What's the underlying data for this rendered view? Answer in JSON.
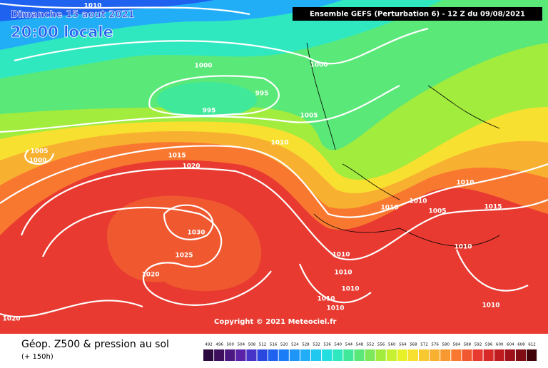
{
  "header": {
    "date": "Dimanche 15 aout 2021",
    "time": "20:00 locale",
    "run": "Ensemble GEFS  (Perturbation 6)  -  12 Z du 09/08/2021"
  },
  "copyright": "Copyright © 2021 Meteociel.fr",
  "footer": {
    "title": "Géop. Z500 & pression au sol",
    "lead": "(+ 150h)"
  },
  "isobar_labels": [
    1010,
    1000,
    1000,
    995,
    995,
    1005,
    1010,
    1015,
    1020,
    1005,
    1000,
    1030,
    1025,
    1020,
    1020,
    1010,
    1015,
    1010,
    1010,
    1005,
    1010,
    1010,
    1010,
    1010,
    1010,
    1010,
    1010
  ],
  "legend": {
    "values": [
      492,
      496,
      500,
      504,
      508,
      512,
      516,
      520,
      524,
      528,
      532,
      536,
      540,
      544,
      548,
      552,
      556,
      560,
      564,
      568,
      572,
      576,
      580,
      584,
      588,
      592,
      596,
      600,
      604,
      608,
      612
    ],
    "colors": [
      "#2b0a3d",
      "#3d0f5c",
      "#4b1780",
      "#5a22a8",
      "#4634c8",
      "#2a48e0",
      "#1f62f0",
      "#1a7cf6",
      "#1e96f8",
      "#22aef6",
      "#20c8f0",
      "#22dede",
      "#30e8c0",
      "#40e89a",
      "#5ae878",
      "#7ee85a",
      "#a2ec3e",
      "#c6f030",
      "#e8f028",
      "#f8e030",
      "#f8c830",
      "#f8b030",
      "#f89830",
      "#f87830",
      "#f05830",
      "#e83a30",
      "#d82828",
      "#c01c20",
      "#a0121a",
      "#800c14",
      "#400408"
    ]
  }
}
